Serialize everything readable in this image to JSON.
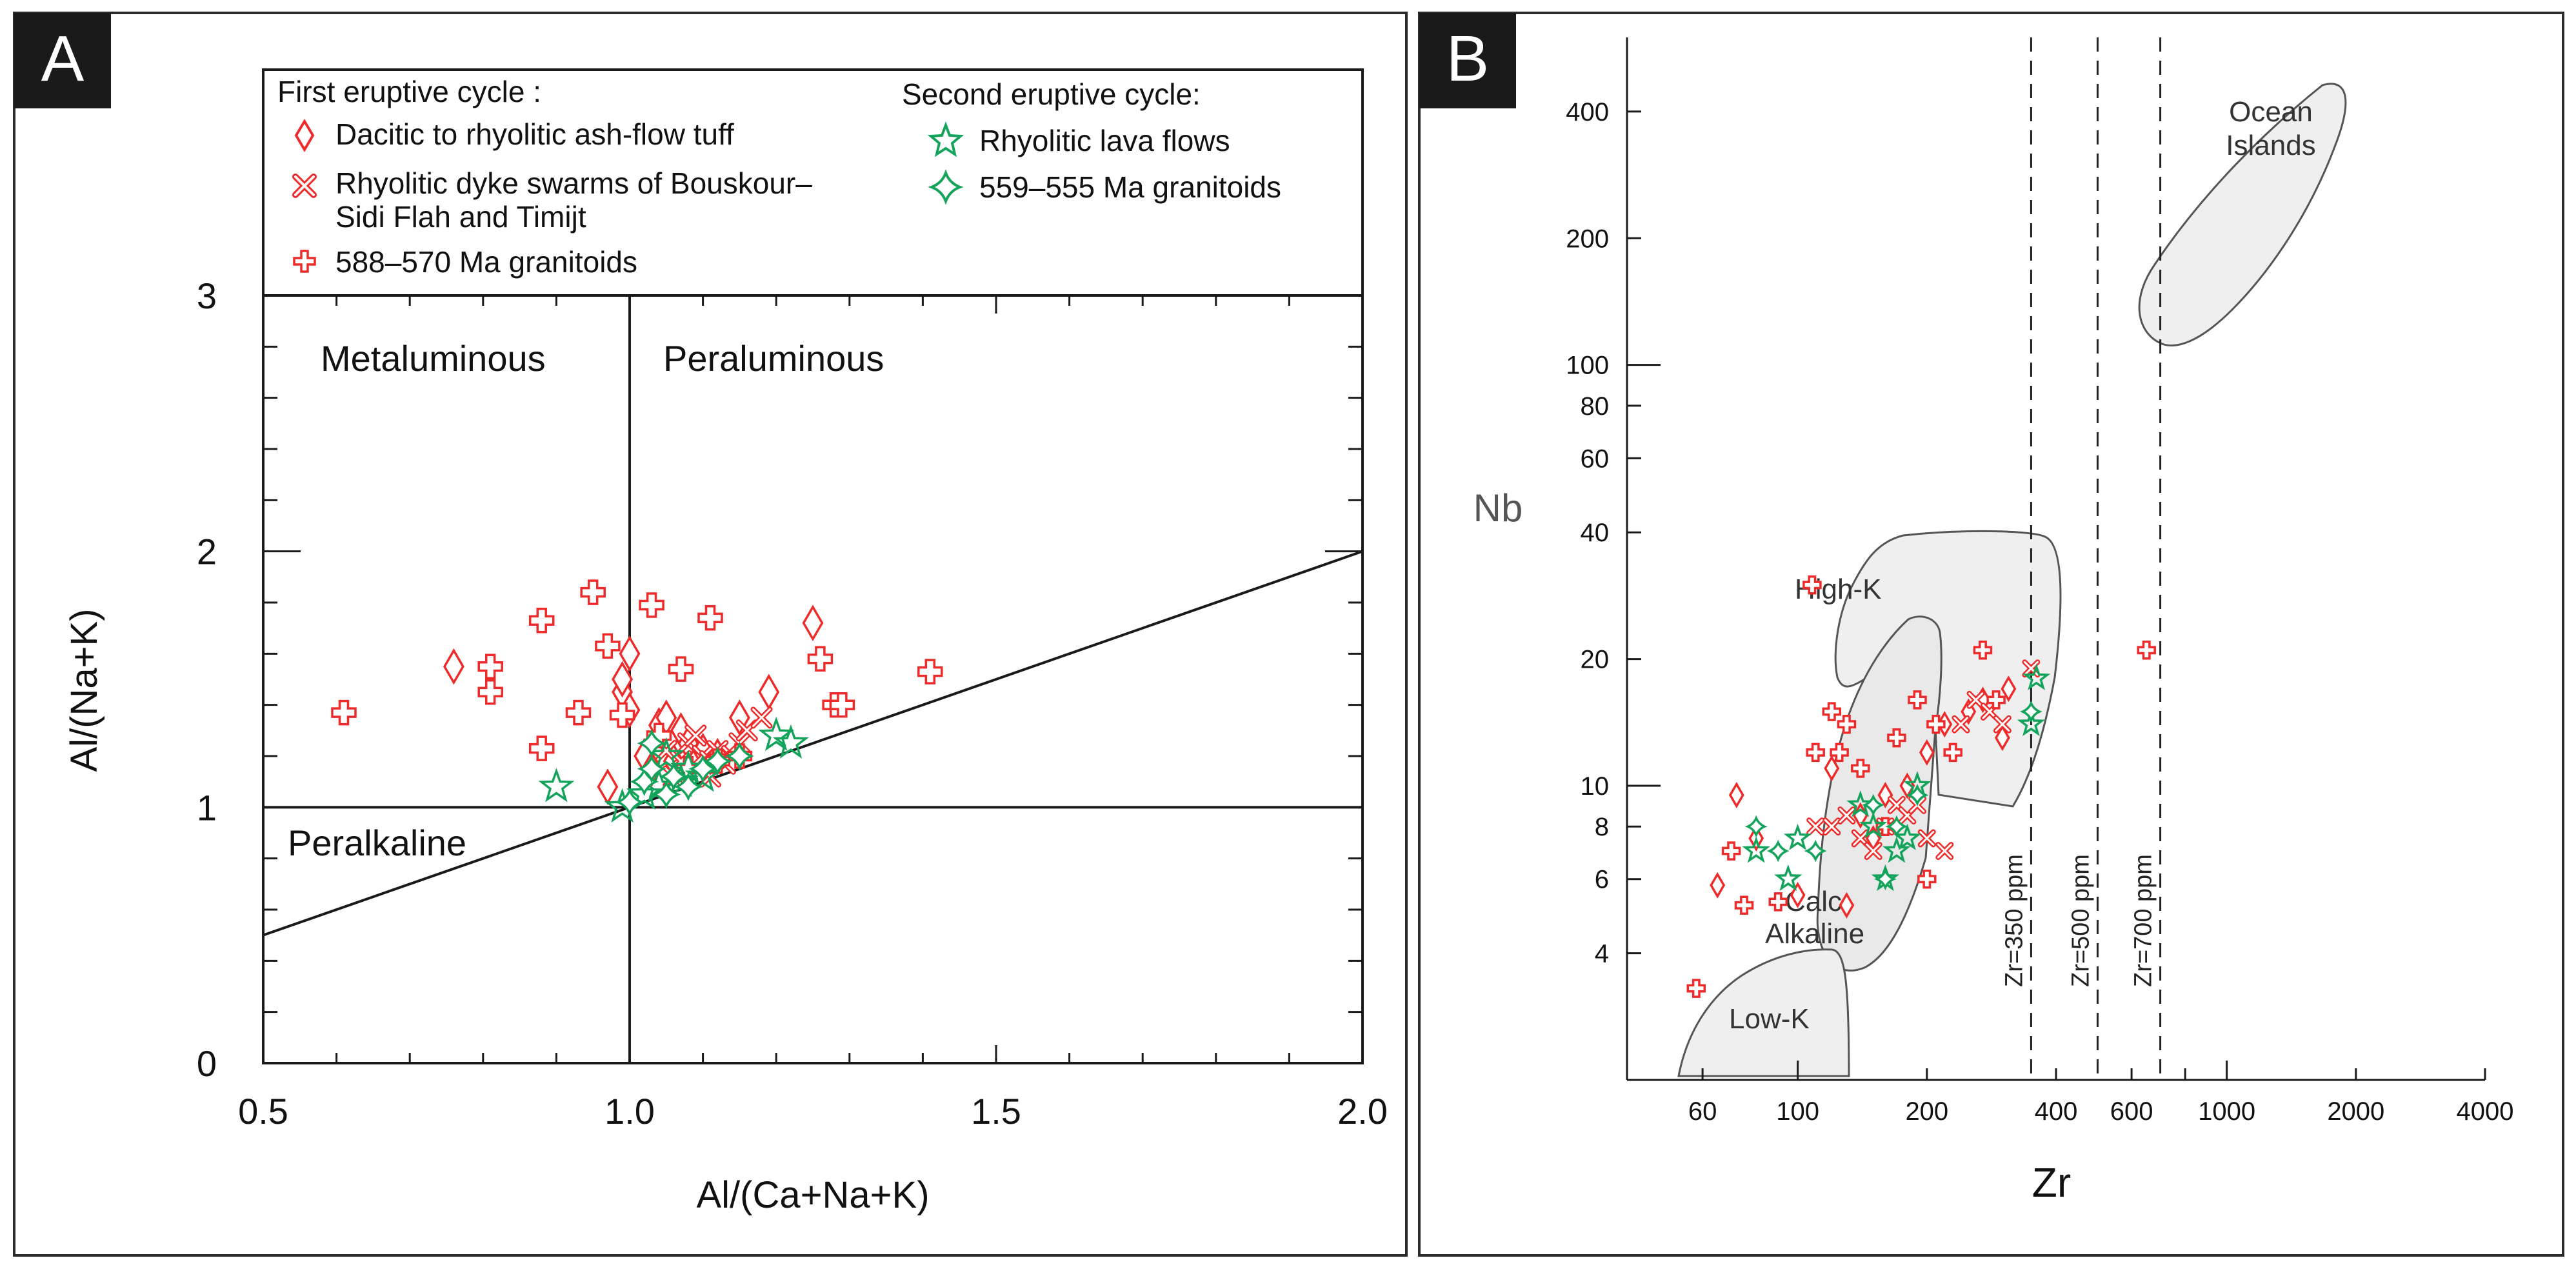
{
  "chart_data": [
    {
      "panel_label": "A",
      "type": "scatter",
      "xlabel": "Al/(Ca+Na+K)",
      "ylabel": "Al/(Na+K)",
      "xlim": [
        0.5,
        2.0
      ],
      "ylim": [
        0,
        3
      ],
      "x_ticks": [
        "0.5",
        "1.0",
        "1.5",
        "2.0"
      ],
      "y_ticks": [
        "0",
        "1",
        "2",
        "3"
      ],
      "grid": false,
      "legend_placement": "top",
      "legend": {
        "first_cycle_title": "First eruptive cycle :",
        "second_cycle_title": "Second eruptive cycle:",
        "entries": [
          {
            "symbol": "diamond",
            "color": "#ee2b2b",
            "lines": [
              "Dacitic to rhyolitic ash-flow tuff"
            ]
          },
          {
            "symbol": "cross",
            "color": "#ee2b2b",
            "lines": [
              "Rhyolitic dyke swarms of Bouskour–",
              "Sidi Flah and Timijt"
            ]
          },
          {
            "symbol": "plus",
            "color": "#ee2b2b",
            "lines": [
              "588–570 Ma granitoids"
            ]
          },
          {
            "symbol": "star",
            "color": "#13a35a",
            "lines": [
              "Rhyolitic lava flows"
            ]
          },
          {
            "symbol": "clover",
            "color": "#13a35a",
            "lines": [
              "559–555 Ma granitoids"
            ]
          }
        ]
      },
      "annotations": [
        "Metaluminous",
        "Peraluminous",
        "Peralkaline"
      ],
      "reference_lines": {
        "vertical_x": 1.0,
        "horizontal_y": 1.0,
        "diagonal": [
          [
            0.5,
            0.5
          ],
          [
            2.0,
            2.0
          ]
        ]
      },
      "series": [
        {
          "name": "Dacitic to rhyolitic ash-flow tuff",
          "symbol": "diamond",
          "color": "#ee2b2b",
          "points": [
            [
              0.76,
              1.55
            ],
            [
              0.97,
              1.08
            ],
            [
              0.99,
              1.45
            ],
            [
              0.99,
              1.5
            ],
            [
              1.0,
              1.6
            ],
            [
              1.0,
              1.38
            ],
            [
              1.02,
              1.2
            ],
            [
              1.04,
              1.32
            ],
            [
              1.05,
              1.35
            ],
            [
              1.07,
              1.3
            ],
            [
              1.08,
              1.25
            ],
            [
              1.1,
              1.22
            ],
            [
              1.12,
              1.2
            ],
            [
              1.15,
              1.35
            ],
            [
              1.19,
              1.45
            ],
            [
              1.25,
              1.72
            ],
            [
              1.03,
              1.15
            ],
            [
              1.06,
              1.18
            ]
          ]
        },
        {
          "name": "Rhyolitic dyke swarms of Bouskour– Sidi Flah and Timijt",
          "symbol": "cross",
          "color": "#ee2b2b",
          "points": [
            [
              1.05,
              1.22
            ],
            [
              1.07,
              1.18
            ],
            [
              1.08,
              1.25
            ],
            [
              1.09,
              1.15
            ],
            [
              1.1,
              1.2
            ],
            [
              1.11,
              1.18
            ],
            [
              1.12,
              1.22
            ],
            [
              1.13,
              1.17
            ],
            [
              1.14,
              1.2
            ],
            [
              1.15,
              1.25
            ],
            [
              1.06,
              1.12
            ],
            [
              1.09,
              1.28
            ],
            [
              1.11,
              1.12
            ],
            [
              1.16,
              1.3
            ],
            [
              1.18,
              1.35
            ]
          ]
        },
        {
          "name": "588–570 Ma granitoids",
          "symbol": "plus",
          "color": "#ee2b2b",
          "points": [
            [
              0.61,
              1.37
            ],
            [
              0.81,
              1.55
            ],
            [
              0.81,
              1.45
            ],
            [
              0.88,
              1.73
            ],
            [
              0.88,
              1.23
            ],
            [
              0.93,
              1.37
            ],
            [
              0.95,
              1.84
            ],
            [
              0.97,
              1.63
            ],
            [
              0.99,
              1.36
            ],
            [
              1.03,
              1.79
            ],
            [
              1.07,
              1.54
            ],
            [
              1.11,
              1.74
            ],
            [
              1.15,
              1.2
            ],
            [
              1.26,
              1.58
            ],
            [
              1.28,
              1.4
            ],
            [
              1.29,
              1.4
            ],
            [
              1.41,
              1.53
            ],
            [
              1.04,
              1.28
            ],
            [
              1.08,
              1.15
            ],
            [
              1.12,
              1.18
            ]
          ]
        },
        {
          "name": "Rhyolitic lava flows",
          "symbol": "star",
          "color": "#13a35a",
          "points": [
            [
              0.9,
              1.08
            ],
            [
              0.99,
              1.0
            ],
            [
              1.02,
              1.05
            ],
            [
              1.04,
              1.08
            ],
            [
              1.05,
              1.2
            ],
            [
              1.07,
              1.1
            ],
            [
              1.08,
              1.15
            ],
            [
              1.1,
              1.12
            ],
            [
              1.2,
              1.28
            ],
            [
              1.22,
              1.25
            ]
          ]
        },
        {
          "name": "559–555 Ma granitoids",
          "symbol": "clover",
          "color": "#13a35a",
          "points": [
            [
              1.0,
              1.02
            ],
            [
              1.02,
              1.1
            ],
            [
              1.03,
              1.15
            ],
            [
              1.05,
              1.05
            ],
            [
              1.06,
              1.12
            ],
            [
              1.08,
              1.08
            ],
            [
              1.1,
              1.15
            ],
            [
              1.12,
              1.18
            ],
            [
              1.15,
              1.2
            ],
            [
              1.03,
              1.25
            ]
          ]
        }
      ]
    },
    {
      "panel_label": "B",
      "type": "scatter",
      "xlabel": "Zr",
      "ylabel": "Nb",
      "x_scale": "log",
      "y_scale": "log",
      "xlim": [
        40,
        4000
      ],
      "ylim": [
        2,
        600
      ],
      "x_ticks": [
        "60",
        "100",
        "200",
        "400",
        "600",
        "1000",
        "2000",
        "4000"
      ],
      "y_ticks": [
        "4",
        "6",
        "8",
        "10",
        "20",
        "40",
        "60",
        "80",
        "100",
        "200",
        "400"
      ],
      "grid": false,
      "fields": [
        {
          "name": "Ocean Islands",
          "label_lines": [
            "Ocean",
            "Islands"
          ]
        },
        {
          "name": "High-K",
          "label_lines": [
            "High-K"
          ]
        },
        {
          "name": "Calc-Alkaline",
          "label_lines": [
            "Calc-",
            "Alkaline"
          ]
        },
        {
          "name": "Low-K",
          "label_lines": [
            "Low-K"
          ]
        }
      ],
      "reference_lines": [
        {
          "x": 350,
          "label": "Zr=350 ppm"
        },
        {
          "x": 500,
          "label": "Zr=500 ppm"
        },
        {
          "x": 700,
          "label": "Zr=700 ppm"
        }
      ],
      "series": [
        {
          "name": "Dacitic to rhyolitic ash-flow tuff",
          "symbol": "diamond",
          "color": "#ee2b2b",
          "points": [
            [
              65,
              5.8
            ],
            [
              72,
              9.5
            ],
            [
              80,
              7.5
            ],
            [
              100,
              5.5
            ],
            [
              120,
              11
            ],
            [
              130,
              5.2
            ],
            [
              140,
              8.5
            ],
            [
              160,
              9.5
            ],
            [
              200,
              12
            ],
            [
              220,
              14
            ],
            [
              250,
              15
            ],
            [
              270,
              16
            ],
            [
              300,
              13
            ],
            [
              310,
              17
            ],
            [
              180,
              10
            ],
            [
              150,
              7.5
            ]
          ]
        },
        {
          "name": "Rhyolitic dyke swarms of Bouskour– Sidi Flah and Timijt",
          "symbol": "cross",
          "color": "#ee2b2b",
          "points": [
            [
              110,
              8
            ],
            [
              120,
              8
            ],
            [
              130,
              8.5
            ],
            [
              140,
              7.5
            ],
            [
              150,
              7
            ],
            [
              160,
              8
            ],
            [
              170,
              9
            ],
            [
              180,
              8.5
            ],
            [
              190,
              9
            ],
            [
              200,
              7.5
            ],
            [
              220,
              7
            ],
            [
              240,
              14
            ],
            [
              260,
              16
            ],
            [
              280,
              15
            ],
            [
              300,
              14
            ],
            [
              350,
              19
            ]
          ]
        },
        {
          "name": "588–570 Ma granitoids",
          "symbol": "plus",
          "color": "#ee2b2b",
          "points": [
            [
              58,
              3.3
            ],
            [
              70,
              7
            ],
            [
              75,
              5.2
            ],
            [
              90,
              5.3
            ],
            [
              108,
              30
            ],
            [
              110,
              12
            ],
            [
              120,
              15
            ],
            [
              125,
              12
            ],
            [
              130,
              14
            ],
            [
              140,
              11
            ],
            [
              160,
              8
            ],
            [
              170,
              13
            ],
            [
              190,
              16
            ],
            [
              200,
              6
            ],
            [
              210,
              14
            ],
            [
              230,
              12
            ],
            [
              270,
              21
            ],
            [
              290,
              16
            ],
            [
              650,
              21
            ]
          ]
        },
        {
          "name": "Rhyolitic lava flows",
          "symbol": "star",
          "color": "#13a35a",
          "points": [
            [
              80,
              7
            ],
            [
              95,
              6
            ],
            [
              100,
              7.5
            ],
            [
              140,
              9
            ],
            [
              150,
              8
            ],
            [
              160,
              6
            ],
            [
              170,
              7
            ],
            [
              180,
              7.5
            ],
            [
              190,
              10
            ],
            [
              350,
              14
            ],
            [
              360,
              18
            ]
          ]
        },
        {
          "name": "559–555 Ma granitoids",
          "symbol": "clover",
          "color": "#13a35a",
          "points": [
            [
              80,
              8
            ],
            [
              90,
              7
            ],
            [
              110,
              7
            ],
            [
              150,
              9
            ],
            [
              160,
              6
            ],
            [
              170,
              8
            ],
            [
              190,
              9.5
            ],
            [
              350,
              15
            ]
          ]
        }
      ]
    }
  ]
}
